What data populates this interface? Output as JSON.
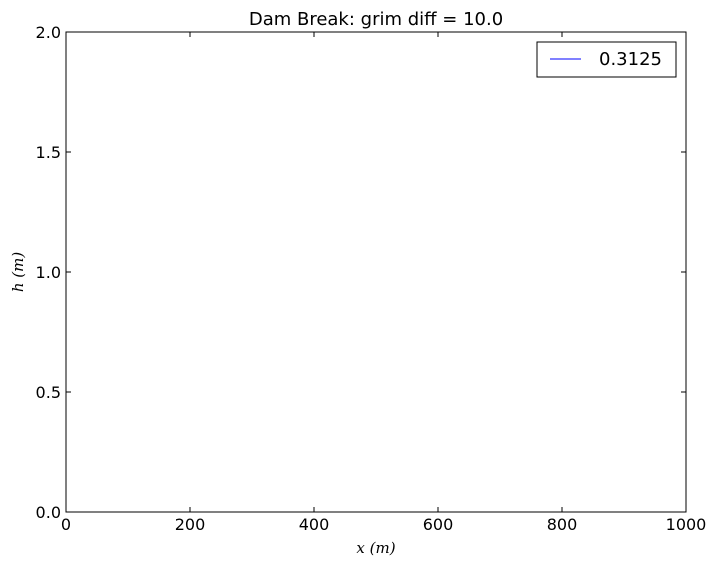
{
  "chart_data": {
    "type": "line",
    "title": "Dam Break: grim diff = 10.0",
    "xlabel": "x (m)",
    "ylabel": "h (m)",
    "xlim": [
      0,
      1000
    ],
    "ylim": [
      0.0,
      2.0
    ],
    "xticks": [
      0,
      200,
      400,
      600,
      800,
      1000
    ],
    "xtick_labels": [
      "0",
      "200",
      "400",
      "600",
      "800",
      "1000"
    ],
    "yticks": [
      0.0,
      0.5,
      1.0,
      1.5,
      2.0
    ],
    "ytick_labels": [
      "0.0",
      "0.5",
      "1.0",
      "1.5",
      "2.0"
    ],
    "grid": false,
    "legend_position": "top-right",
    "series": [
      {
        "name": "0.3125",
        "color": "#0000ff",
        "x": [],
        "y": []
      }
    ]
  }
}
